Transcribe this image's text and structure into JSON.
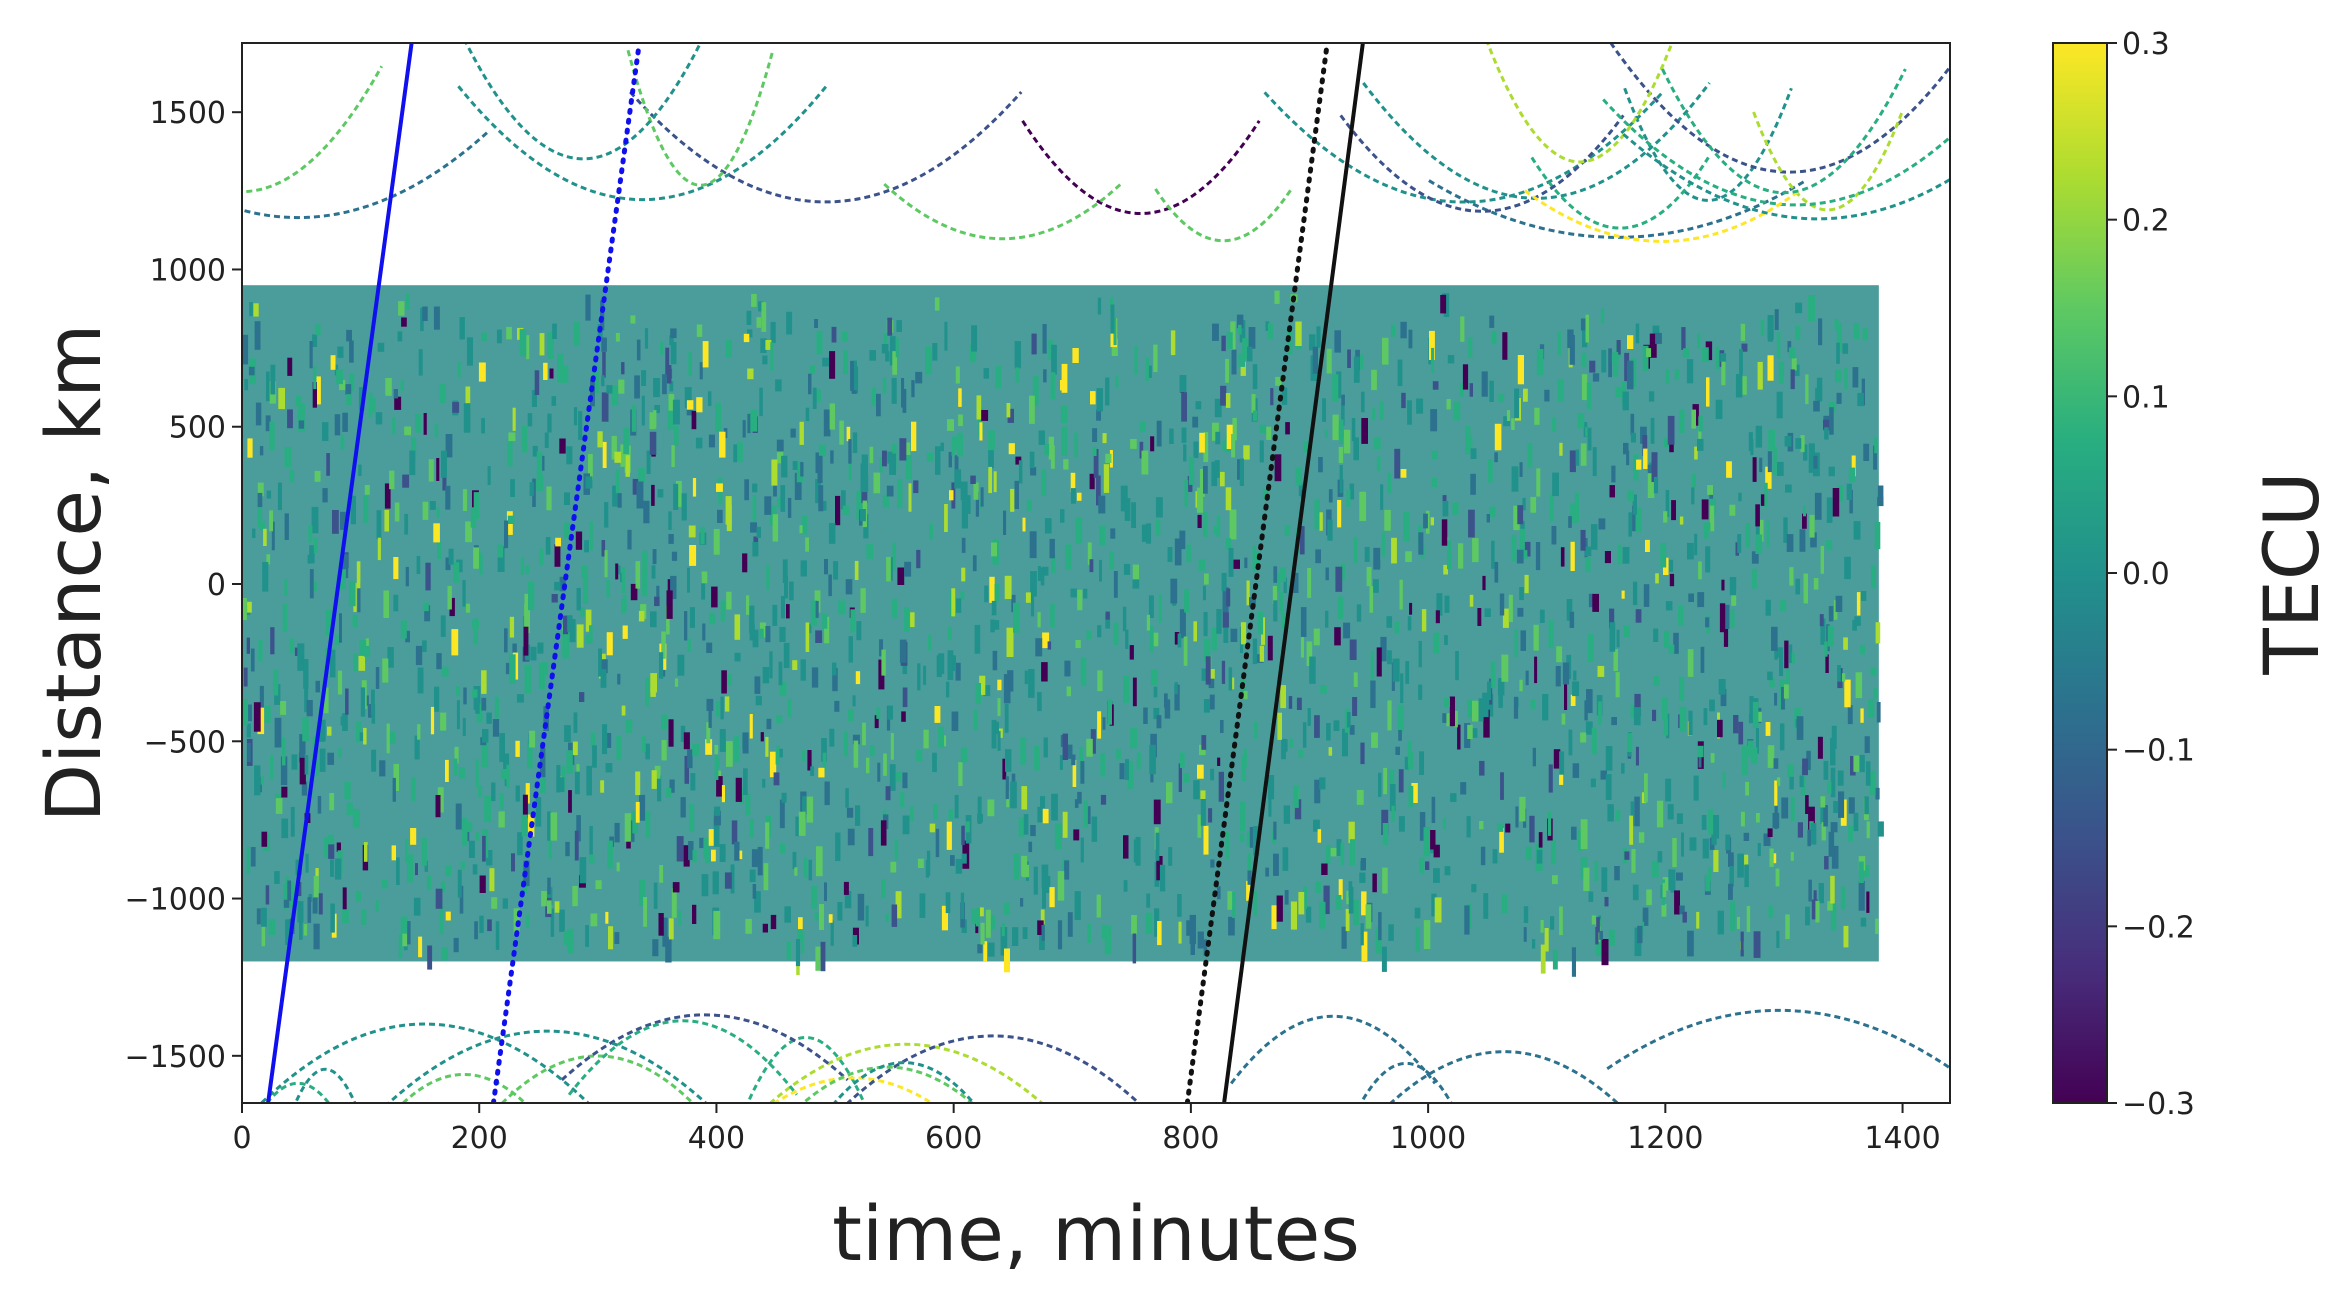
{
  "chart_data": {
    "type": "scatter",
    "title": "",
    "xlabel": "time, minutes",
    "ylabel": "Distance, km",
    "xlim": [
      0,
      1440
    ],
    "ylim": [
      -1650,
      1720
    ],
    "xticks": [
      0,
      200,
      400,
      600,
      800,
      1000,
      1200,
      1400
    ],
    "yticks": [
      -1500,
      -1000,
      -500,
      0,
      500,
      1000,
      1500
    ],
    "grid": false,
    "colorbar": {
      "label": "TECU",
      "colormap": "viridis",
      "range": [
        -0.3,
        0.3
      ],
      "ticks": [
        "0.3",
        "0.2",
        "0.1",
        "0.0",
        "−0.1",
        "−0.2",
        "−0.3"
      ],
      "tick_values": [
        0.3,
        0.2,
        0.1,
        0.0,
        -0.1,
        -0.2,
        -0.3
      ]
    },
    "dense_region": {
      "x_range": [
        0,
        1380
      ],
      "y_range": [
        -1200,
        950
      ]
    },
    "reference_lines": [
      {
        "color": "#1010ee",
        "style": "solid",
        "points": [
          [
            22,
            -1650
          ],
          [
            143,
            1720
          ]
        ]
      },
      {
        "color": "#1010ee",
        "style": "dotted",
        "points": [
          [
            212,
            -1650
          ],
          [
            335,
            1720
          ]
        ]
      },
      {
        "color": "#111111",
        "style": "dotted",
        "points": [
          [
            797,
            -1650
          ],
          [
            915,
            1720
          ]
        ]
      },
      {
        "color": "#111111",
        "style": "solid",
        "points": [
          [
            828,
            -1650
          ],
          [
            945,
            1720
          ]
        ]
      }
    ]
  }
}
